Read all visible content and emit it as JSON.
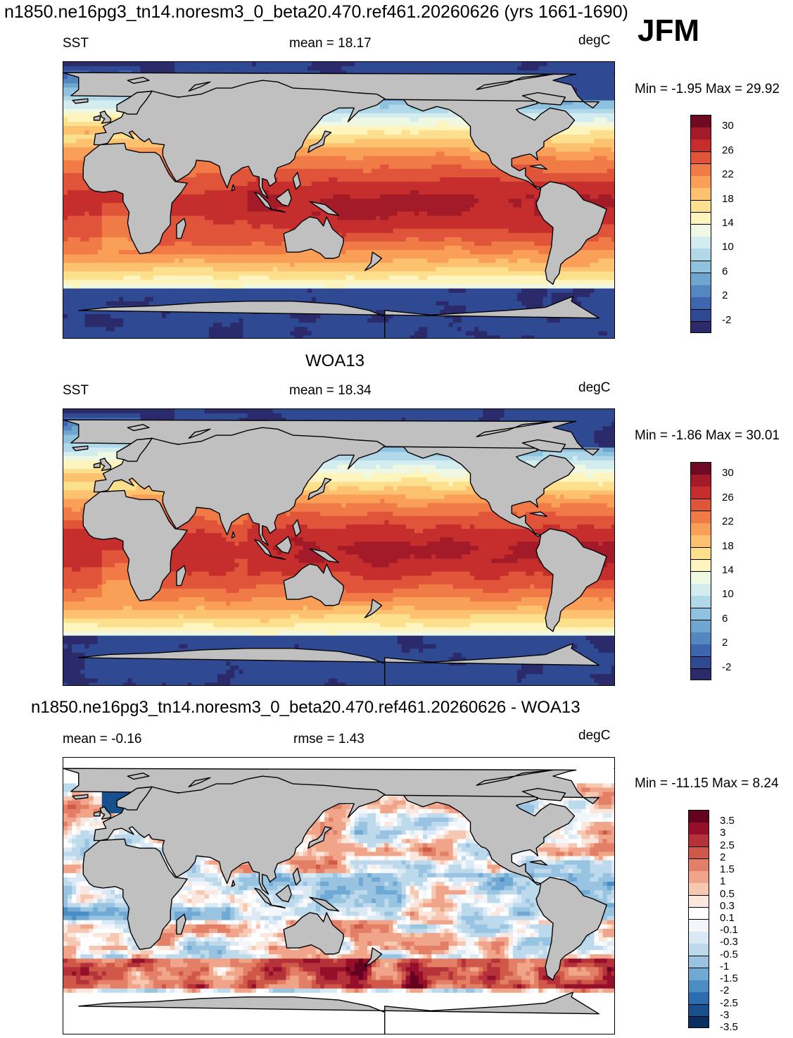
{
  "header": {
    "title": "n1850.ne16pg3_tn14.noresm3_0_beta20.470.ref461.20260626 (yrs 1661-1690)",
    "season": "JFM"
  },
  "panels": [
    {
      "id": "model",
      "variable": "SST",
      "stat": "mean =  18.17",
      "units": "degC",
      "minmax": "Min =  -1.95 Max =  29.92"
    },
    {
      "id": "obs",
      "title": "WOA13",
      "variable": "SST",
      "stat": "mean =  18.34",
      "units": "degC",
      "minmax": "Min =  -1.86 Max =  30.01"
    },
    {
      "id": "diff",
      "title": "n1850.ne16pg3_tn14.noresm3_0_beta20.470.ref461.20260626 - WOA13",
      "stat": "mean =  -0.16",
      "stat2": "rmse =   1.43",
      "units": "degC",
      "minmax": "Min = -11.15 Max =   8.24"
    }
  ],
  "colors": {
    "land": "#c0c0c0",
    "coast": "#000000",
    "sst_scale": [
      "#2b2a6b",
      "#2f4a93",
      "#3e66ae",
      "#5486c0",
      "#6ea6d0",
      "#8ec2de",
      "#b1d8e8",
      "#d3ecef",
      "#eef8e2",
      "#fdf5bd",
      "#fde08e",
      "#fdc26f",
      "#fa9f58",
      "#f07b46",
      "#e0543a",
      "#c52e2c",
      "#a31a28",
      "#6e0a21"
    ],
    "diff_scale": [
      "#0c2f63",
      "#16508f",
      "#2a6eb0",
      "#4a8ec4",
      "#6fa9d4",
      "#98c4e2",
      "#bdd9ec",
      "#dbe9f4",
      "#f3f7fb",
      "#ffffff",
      "#fbe7dd",
      "#f6c8b2",
      "#f0a58a",
      "#e27f66",
      "#cf5849",
      "#b6323a",
      "#960f2a",
      "#660021"
    ]
  },
  "chart_data": [
    {
      "type": "heatmap",
      "title": "n1850.ne16pg3_tn14.noresm3_0_beta20.470.ref461.20260626 (yrs 1661-1690)",
      "variable": "SST",
      "units": "degC",
      "mean": 18.17,
      "min": -1.95,
      "max": 29.92,
      "colorbar_ticks": [
        "30",
        "26",
        "22",
        "18",
        "14",
        "10",
        "6",
        "2",
        "-2"
      ],
      "colorbar_levels": [
        -2,
        0,
        2,
        4,
        6,
        8,
        10,
        12,
        14,
        16,
        18,
        20,
        22,
        24,
        26,
        28,
        30
      ]
    },
    {
      "type": "heatmap",
      "title": "WOA13",
      "variable": "SST",
      "units": "degC",
      "mean": 18.34,
      "min": -1.86,
      "max": 30.01,
      "colorbar_ticks": [
        "30",
        "26",
        "22",
        "18",
        "14",
        "10",
        "6",
        "2",
        "-2"
      ],
      "colorbar_levels": [
        -2,
        0,
        2,
        4,
        6,
        8,
        10,
        12,
        14,
        16,
        18,
        20,
        22,
        24,
        26,
        28,
        30
      ]
    },
    {
      "type": "heatmap",
      "title": "n1850.ne16pg3_tn14.noresm3_0_beta20.470.ref461.20260626 - WOA13",
      "units": "degC",
      "mean": -0.16,
      "rmse": 1.43,
      "min": -11.15,
      "max": 8.24,
      "colorbar_ticks": [
        "3.5",
        "3",
        "2.5",
        "2",
        "1.5",
        "1",
        "0.5",
        "0.3",
        "0.1",
        "-0.1",
        "-0.3",
        "-0.5",
        "-1",
        "-1.5",
        "-2",
        "-2.5",
        "-3",
        "-3.5"
      ],
      "colorbar_levels": [
        -3.5,
        -3,
        -2.5,
        -2,
        -1.5,
        -1,
        -0.5,
        -0.3,
        -0.1,
        0.1,
        0.3,
        0.5,
        1,
        1.5,
        2,
        2.5,
        3,
        3.5
      ]
    }
  ]
}
